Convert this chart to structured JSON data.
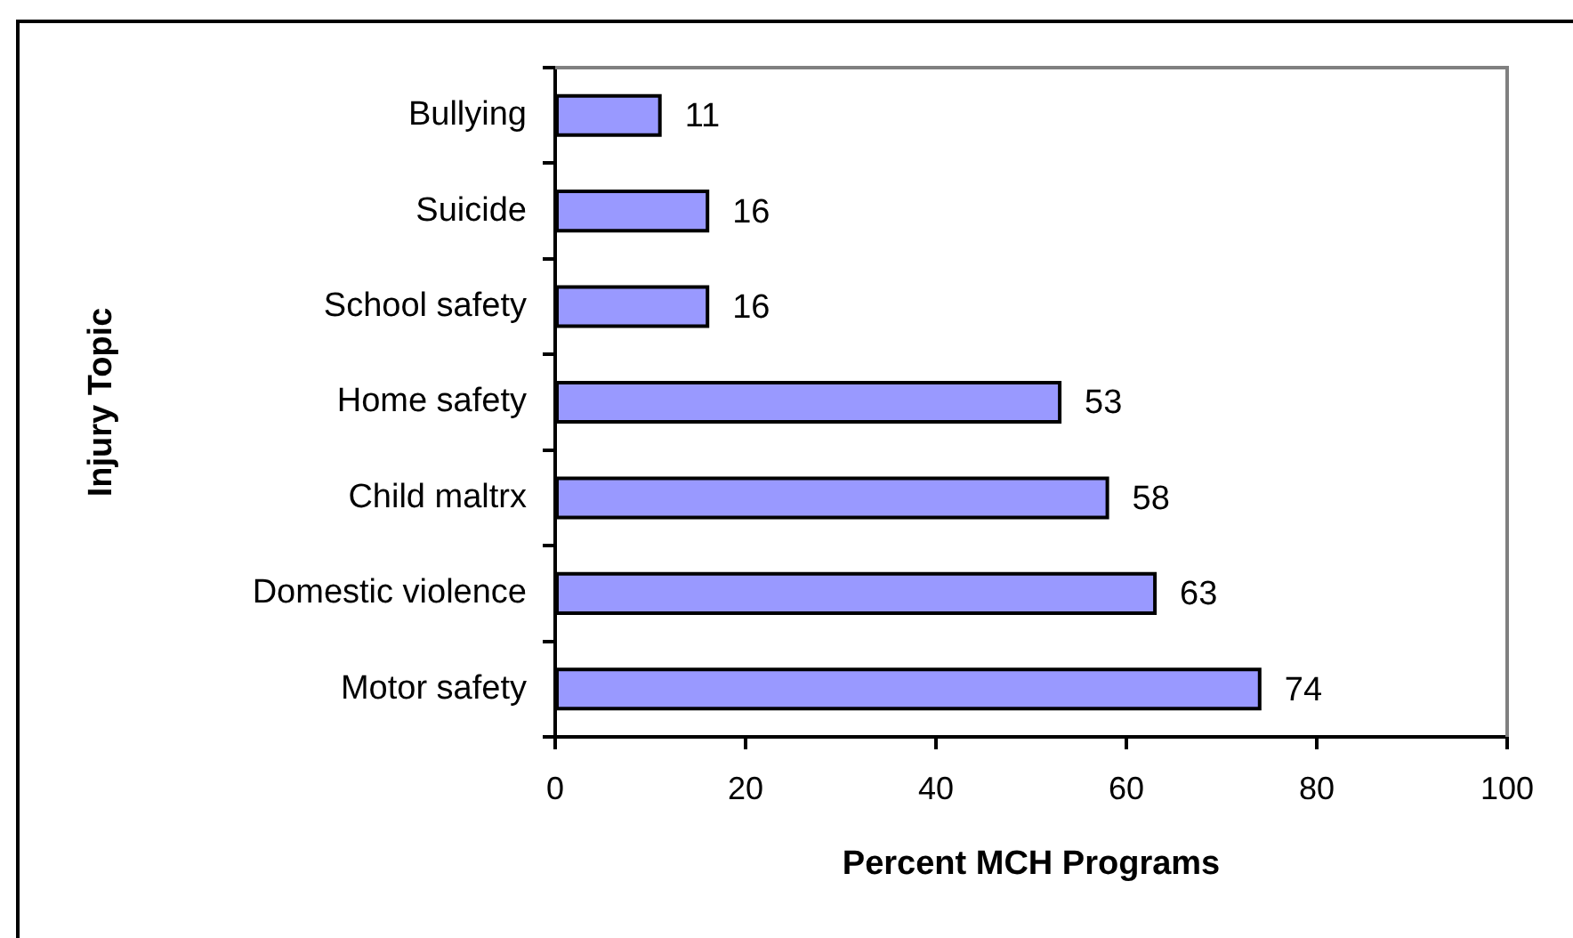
{
  "chart_data": {
    "type": "bar",
    "orientation": "horizontal",
    "xlabel": "Percent MCH Programs",
    "ylabel": "Injury Topic",
    "categories": [
      "Bullying",
      "Suicide",
      "School safety",
      "Home safety",
      "Child maltrx",
      "Domestic violence",
      "Motor safety"
    ],
    "values": [
      11,
      16,
      16,
      53,
      58,
      63,
      74
    ],
    "color": "#9999ff",
    "xlim": [
      0,
      100
    ],
    "xticks": [
      0,
      20,
      40,
      60,
      80,
      100
    ],
    "data_labels": true,
    "grid": false,
    "legend": false
  }
}
